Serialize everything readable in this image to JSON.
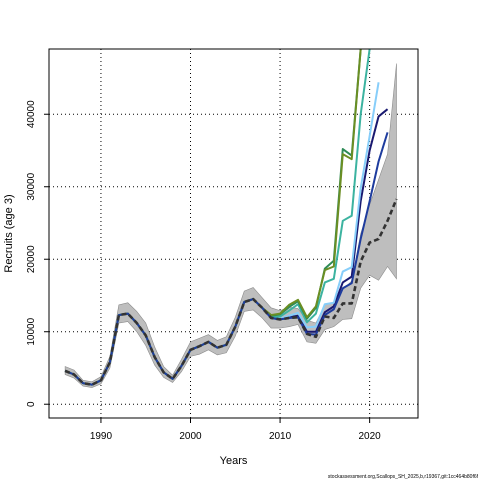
{
  "chart_data": {
    "type": "line",
    "xlabel": "Years",
    "ylabel": "Recruits (age 3)",
    "xlim": [
      1984.2,
      2025.4
    ],
    "ylim": [
      -1900,
      49000
    ],
    "x_ticks": [
      1990,
      2000,
      2010,
      2020
    ],
    "y_ticks": [
      0,
      10000,
      20000,
      30000,
      40000
    ],
    "grid": true,
    "legend": "none",
    "colors": {
      "band": "#bebebe",
      "final": "#333333",
      "olive": "#6b8e23",
      "green": "#2e8b57",
      "teal": "#3cb3a0",
      "skyblue": "#87cefa",
      "navy": "#191970",
      "midblue": "#1e3c9e"
    },
    "band": {
      "x": [
        1986,
        1987,
        1988,
        1989,
        1990,
        1991,
        1992,
        1993,
        1994,
        1995,
        1996,
        1997,
        1998,
        1999,
        2000,
        2001,
        2002,
        2003,
        2004,
        2005,
        2006,
        2007,
        2008,
        2009,
        2010,
        2011,
        2012,
        2013,
        2014,
        2015,
        2016,
        2017,
        2018,
        2019,
        2020,
        2021,
        2022,
        2023
      ],
      "lower": [
        4100,
        3600,
        2500,
        2300,
        2800,
        5000,
        11200,
        11400,
        10000,
        8100,
        5400,
        3700,
        3000,
        4500,
        6600,
        6900,
        7500,
        6800,
        7100,
        9400,
        12800,
        13000,
        11900,
        10500,
        10500,
        10700,
        11000,
        8600,
        8400,
        10300,
        10700,
        11700,
        11800,
        16000,
        17800,
        17100,
        19000,
        17300
      ],
      "upper": [
        5200,
        4700,
        3300,
        3100,
        3800,
        6600,
        13700,
        14000,
        12800,
        11200,
        7900,
        5200,
        4000,
        6200,
        8600,
        9100,
        9600,
        8800,
        9300,
        12000,
        15600,
        16100,
        14700,
        13300,
        12900,
        13400,
        13200,
        11600,
        11200,
        13700,
        14000,
        15800,
        17000,
        23500,
        27500,
        31000,
        34500,
        47000
      ]
    },
    "series": [
      {
        "color": "#191970",
        "style": "solid",
        "x": [
          1986,
          1987,
          1988,
          1989,
          1990,
          1991,
          1992,
          1993,
          1994,
          1995,
          1996,
          1997,
          1998,
          1999,
          2000,
          2001,
          2002,
          2003,
          2004,
          2005,
          2006,
          2007,
          2008,
          2009,
          2010,
          2011,
          2012,
          2013,
          2014,
          2015,
          2016,
          2017,
          2018,
          2019,
          2020,
          2021,
          2022
        ],
        "values": [
          4600,
          4100,
          2900,
          2700,
          3300,
          5800,
          12300,
          12500,
          11200,
          9500,
          6500,
          4400,
          3500,
          5300,
          7500,
          8000,
          8600,
          7800,
          8200,
          10700,
          14100,
          14500,
          13300,
          11900,
          11700,
          12000,
          12200,
          10000,
          10000,
          12700,
          13500,
          16800,
          17600,
          28000,
          35000,
          39700,
          40700
        ]
      },
      {
        "color": "#87cefa",
        "style": "solid",
        "x": [
          1986,
          1987,
          1988,
          1989,
          1990,
          1991,
          1992,
          1993,
          1994,
          1995,
          1996,
          1997,
          1998,
          1999,
          2000,
          2001,
          2002,
          2003,
          2004,
          2005,
          2006,
          2007,
          2008,
          2009,
          2010,
          2011,
          2012,
          2013,
          2014,
          2015,
          2016,
          2017,
          2018,
          2019,
          2020,
          2021
        ],
        "values": [
          4600,
          4100,
          2900,
          2700,
          3300,
          5800,
          12300,
          12500,
          11200,
          9500,
          6500,
          4400,
          3500,
          5300,
          7500,
          8000,
          8600,
          7800,
          8200,
          10700,
          14100,
          14500,
          13300,
          11900,
          11800,
          12200,
          12600,
          10600,
          10700,
          13800,
          14000,
          18300,
          18900,
          29800,
          37000,
          44400
        ]
      },
      {
        "color": "#3cb3a0",
        "style": "solid",
        "x": [
          1986,
          1987,
          1988,
          1989,
          1990,
          1991,
          1992,
          1993,
          1994,
          1995,
          1996,
          1997,
          1998,
          1999,
          2000,
          2001,
          2002,
          2003,
          2004,
          2005,
          2006,
          2007,
          2008,
          2009,
          2010,
          2011,
          2012,
          2013,
          2014,
          2015,
          2016,
          2017,
          2018,
          2019,
          2020
        ],
        "values": [
          4600,
          4100,
          2900,
          2700,
          3300,
          5800,
          12300,
          12500,
          11200,
          9500,
          6500,
          4400,
          3500,
          5300,
          7500,
          8000,
          8600,
          7800,
          8200,
          10700,
          14100,
          14500,
          13300,
          12000,
          12100,
          12900,
          13800,
          11300,
          12500,
          16800,
          17300,
          25300,
          26000,
          40000,
          49000
        ]
      },
      {
        "color": "#2e8b57",
        "style": "solid",
        "x": [
          1986,
          1987,
          1988,
          1989,
          1990,
          1991,
          1992,
          1993,
          1994,
          1995,
          1996,
          1997,
          1998,
          1999,
          2000,
          2001,
          2002,
          2003,
          2004,
          2005,
          2006,
          2007,
          2008,
          2009,
          2010,
          2011,
          2012,
          2013,
          2014,
          2015,
          2016,
          2017,
          2018,
          2019
        ],
        "values": [
          4600,
          4100,
          2900,
          2700,
          3300,
          5800,
          12300,
          12500,
          11200,
          9500,
          6500,
          4400,
          3500,
          5300,
          7500,
          8000,
          8600,
          7800,
          8200,
          10700,
          14100,
          14500,
          13300,
          12200,
          12400,
          13400,
          14200,
          11800,
          13300,
          18700,
          19800,
          35200,
          34300,
          49000
        ]
      },
      {
        "color": "#6b8e23",
        "style": "solid",
        "x": [
          1986,
          1987,
          1988,
          1989,
          1990,
          1991,
          1992,
          1993,
          1994,
          1995,
          1996,
          1997,
          1998,
          1999,
          2000,
          2001,
          2002,
          2003,
          2004,
          2005,
          2006,
          2007,
          2008,
          2009,
          2010,
          2011,
          2012,
          2013,
          2014,
          2015,
          2016,
          2017,
          2018,
          2019
        ],
        "values": [
          4600,
          4100,
          2900,
          2700,
          3300,
          5800,
          12300,
          12500,
          11200,
          9500,
          6500,
          4400,
          3500,
          5300,
          7500,
          8000,
          8600,
          7800,
          8200,
          10700,
          14100,
          14500,
          13300,
          12300,
          12500,
          13700,
          14400,
          12000,
          13500,
          18500,
          19000,
          34500,
          33800,
          49000
        ]
      },
      {
        "color": "#1e3c9e",
        "style": "solid",
        "x": [
          1986,
          1987,
          1988,
          1989,
          1990,
          1991,
          1992,
          1993,
          1994,
          1995,
          1996,
          1997,
          1998,
          1999,
          2000,
          2001,
          2002,
          2003,
          2004,
          2005,
          2006,
          2007,
          2008,
          2009,
          2010,
          2011,
          2012,
          2013,
          2014,
          2015,
          2016,
          2017,
          2018,
          2019,
          2020,
          2021,
          2022
        ],
        "values": [
          4600,
          4100,
          2900,
          2700,
          3300,
          5800,
          12300,
          12500,
          11200,
          9500,
          6500,
          4400,
          3500,
          5300,
          7500,
          8000,
          8600,
          7800,
          8200,
          10700,
          14100,
          14500,
          13300,
          11900,
          11700,
          11900,
          12000,
          9700,
          9600,
          12300,
          13100,
          16000,
          16700,
          22800,
          28000,
          33500,
          37500
        ]
      },
      {
        "color": "#333333",
        "style": "dashed",
        "x": [
          1986,
          1987,
          1988,
          1989,
          1990,
          1991,
          1992,
          1993,
          1994,
          1995,
          1996,
          1997,
          1998,
          1999,
          2000,
          2001,
          2002,
          2003,
          2004,
          2005,
          2006,
          2007,
          2008,
          2009,
          2010,
          2011,
          2012,
          2013,
          2014,
          2015,
          2016,
          2017,
          2018,
          2019,
          2020,
          2021,
          2022,
          2023
        ],
        "values": [
          4600,
          4100,
          2900,
          2700,
          3300,
          5800,
          12300,
          12500,
          11200,
          9500,
          6500,
          4400,
          3500,
          5300,
          7500,
          8000,
          8600,
          7800,
          8200,
          10700,
          14100,
          14500,
          13300,
          11900,
          11700,
          11900,
          12000,
          9700,
          9300,
          12100,
          11900,
          13900,
          13900,
          19700,
          22300,
          22800,
          25300,
          28300
        ]
      }
    ]
  },
  "footer": "stockassessment.org,Scallops_SH_2025,b,r19367,git:1cc464b80f6f"
}
